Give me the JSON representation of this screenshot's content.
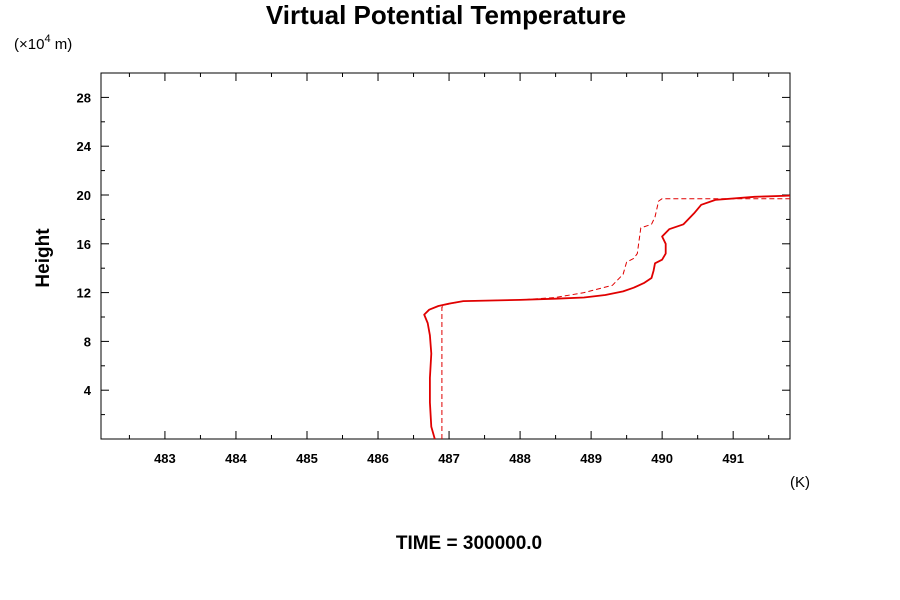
{
  "chart_data": {
    "type": "line",
    "title": "Virtual Potential Temperature",
    "ylabel": "Height",
    "yunit_prefix": "(×10",
    "yunit_exp": "4",
    "yunit_suffix": " m)",
    "xunit": "(K)",
    "footer": "TIME = 300000.0",
    "xlim": [
      482.1,
      491.8
    ],
    "ylim": [
      0,
      30
    ],
    "x_ticks": [
      483,
      484,
      485,
      486,
      487,
      488,
      489,
      490,
      491
    ],
    "x_tick_labels": [
      "483",
      "484",
      "485",
      "486",
      "487",
      "488",
      "489",
      "490",
      "491"
    ],
    "y_ticks": [
      4,
      8,
      12,
      16,
      20,
      24,
      28
    ],
    "y_tick_labels": [
      "4",
      "8",
      "12",
      "16",
      "20",
      "24",
      "28"
    ],
    "line_color": "#e00000",
    "series": [
      {
        "style": "solid",
        "points": [
          [
            486.8,
            0
          ],
          [
            486.75,
            1
          ],
          [
            486.73,
            3
          ],
          [
            486.73,
            5
          ],
          [
            486.75,
            7
          ],
          [
            486.73,
            8.5
          ],
          [
            486.7,
            9.5
          ],
          [
            486.65,
            10.2
          ],
          [
            486.72,
            10.6
          ],
          [
            486.85,
            10.9
          ],
          [
            487.0,
            11.1
          ],
          [
            487.2,
            11.3
          ],
          [
            487.6,
            11.35
          ],
          [
            488.0,
            11.4
          ],
          [
            488.5,
            11.5
          ],
          [
            488.9,
            11.6
          ],
          [
            489.2,
            11.8
          ],
          [
            489.45,
            12.1
          ],
          [
            489.6,
            12.4
          ],
          [
            489.75,
            12.8
          ],
          [
            489.85,
            13.2
          ],
          [
            489.88,
            13.8
          ],
          [
            489.9,
            14.4
          ],
          [
            490.0,
            14.7
          ],
          [
            490.05,
            15.2
          ],
          [
            490.05,
            16.0
          ],
          [
            490.0,
            16.6
          ],
          [
            490.1,
            17.2
          ],
          [
            490.3,
            17.6
          ],
          [
            490.45,
            18.5
          ],
          [
            490.55,
            19.2
          ],
          [
            490.75,
            19.6
          ],
          [
            491.3,
            19.85
          ],
          [
            491.8,
            19.95
          ]
        ]
      },
      {
        "style": "dashed",
        "points": [
          [
            486.9,
            0
          ],
          [
            486.9,
            10.8
          ],
          [
            486.95,
            11.0
          ],
          [
            487.2,
            11.3
          ],
          [
            487.6,
            11.35
          ],
          [
            488.0,
            11.4
          ],
          [
            488.5,
            11.6
          ],
          [
            488.9,
            12.0
          ],
          [
            489.3,
            12.6
          ],
          [
            489.45,
            13.5
          ],
          [
            489.5,
            14.5
          ],
          [
            489.6,
            14.8
          ],
          [
            489.65,
            15.2
          ],
          [
            489.7,
            17.3
          ],
          [
            489.85,
            17.6
          ],
          [
            489.9,
            18.2
          ],
          [
            489.95,
            19.5
          ],
          [
            490.0,
            19.7
          ],
          [
            491.8,
            19.7
          ]
        ]
      }
    ]
  }
}
